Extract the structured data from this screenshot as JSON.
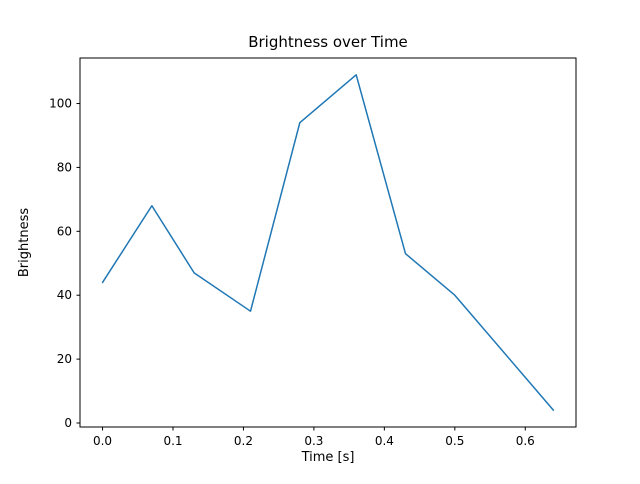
{
  "figure": {
    "background_color": "#ffffff"
  },
  "chart_data": {
    "type": "line",
    "title": "Brightness over Time",
    "xlabel": "Time [s]",
    "ylabel": "Brightness",
    "x": [
      0.0,
      0.07,
      0.13,
      0.21,
      0.28,
      0.36,
      0.43,
      0.5,
      0.64
    ],
    "y": [
      44,
      68,
      47,
      35,
      94,
      109,
      53,
      40,
      4
    ],
    "series_name": "Brightness",
    "line_color": "#1f77b4",
    "line_width": 1.5,
    "xlim": [
      -0.032,
      0.672
    ],
    "ylim": [
      -1.25,
      114.25
    ],
    "xticks": [
      {
        "value": 0.0,
        "label": "0.0"
      },
      {
        "value": 0.1,
        "label": "0.1"
      },
      {
        "value": 0.2,
        "label": "0.2"
      },
      {
        "value": 0.3,
        "label": "0.3"
      },
      {
        "value": 0.4,
        "label": "0.4"
      },
      {
        "value": 0.5,
        "label": "0.5"
      },
      {
        "value": 0.6,
        "label": "0.6"
      }
    ],
    "yticks": [
      {
        "value": 0,
        "label": "0"
      },
      {
        "value": 20,
        "label": "20"
      },
      {
        "value": 40,
        "label": "40"
      },
      {
        "value": 60,
        "label": "60"
      },
      {
        "value": 80,
        "label": "80"
      },
      {
        "value": 100,
        "label": "100"
      }
    ],
    "grid": false,
    "legend": "none",
    "axes_color": "#000000"
  }
}
